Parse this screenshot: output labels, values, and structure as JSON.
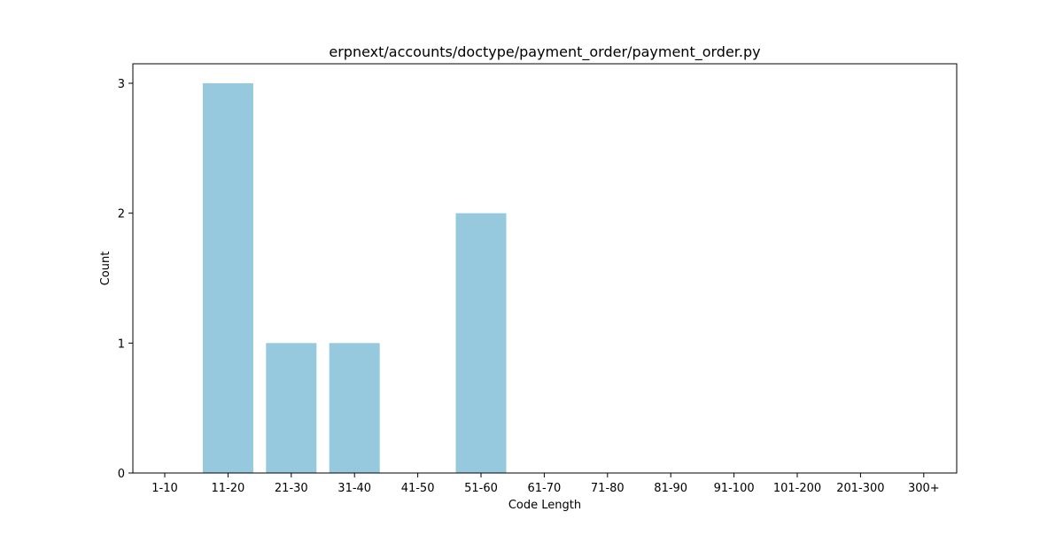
{
  "chart_data": {
    "type": "bar",
    "title": "erpnext/accounts/doctype/payment_order/payment_order.py",
    "xlabel": "Code Length",
    "ylabel": "Count",
    "categories": [
      "1-10",
      "11-20",
      "21-30",
      "31-40",
      "41-50",
      "51-60",
      "61-70",
      "71-80",
      "81-90",
      "91-100",
      "101-200",
      "201-300",
      "300+"
    ],
    "values": [
      0,
      3,
      1,
      1,
      0,
      2,
      0,
      0,
      0,
      0,
      0,
      0,
      0
    ],
    "ylim": [
      0,
      3.15
    ],
    "yticks": [
      0,
      1,
      2,
      3
    ],
    "bar_color": "#96c9de",
    "grid": false,
    "legend": false
  }
}
